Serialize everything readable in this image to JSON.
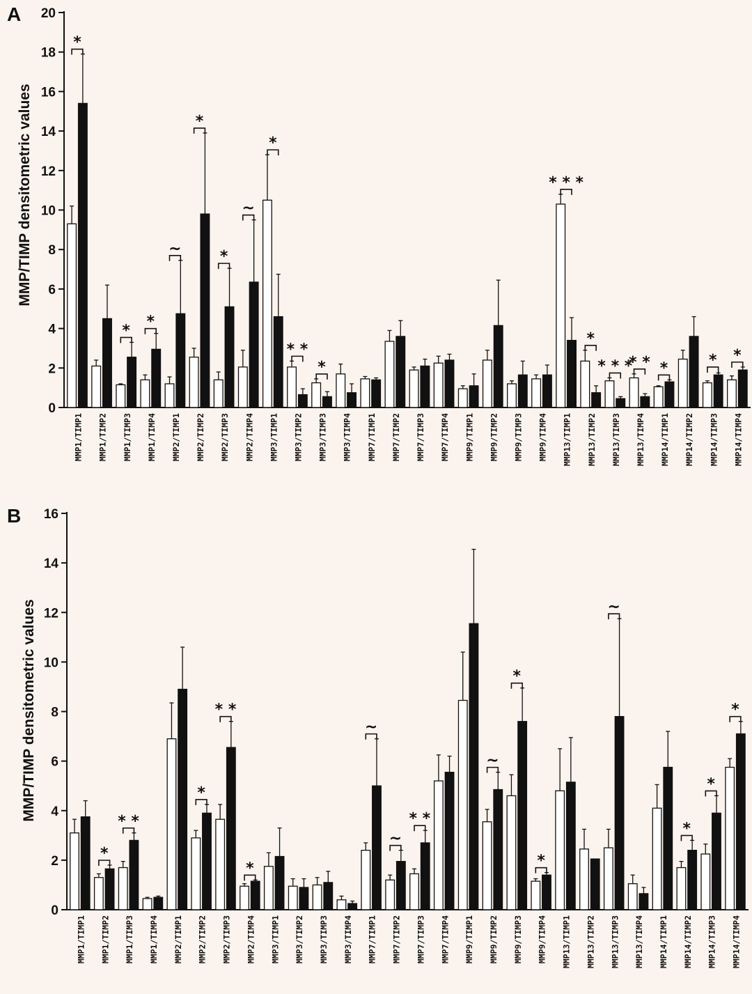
{
  "chart_data": [
    {
      "panel": "A",
      "type": "bar",
      "ylabel": "MMP/TIMP densitometric values",
      "ylim": [
        0,
        20
      ],
      "yticks": [
        "0",
        "2",
        "4",
        "6",
        "8",
        "10",
        "12",
        "14",
        "16",
        "18",
        "20"
      ],
      "categories": [
        "MMP1/TIMP1",
        "MMP1/TIMP2",
        "MMP1/TIMP3",
        "MMP1/TIMP4",
        "MMP2/TIMP1",
        "MMP2/TIMP2",
        "MMP2/TIMP3",
        "MMP2/TIMP4",
        "MMP3/TIMP1",
        "MMP3/TIMP2",
        "MMP3/TIMP3",
        "MMP3/TIMP4",
        "MMP7/TIMP1",
        "MMP7/TIMP2",
        "MMP7/TIMP3",
        "MMP7/TIMP4",
        "MMP9/TIMP1",
        "MMP9/TIMP2",
        "MMP9/TIMP3",
        "MMP9/TIMP4",
        "MMP13/TIMP1",
        "MMP13/TIMP2",
        "MMP13/TIMP3",
        "MMP13/TIMP4",
        "MMP14/TIMP1",
        "MMP14/TIMP2",
        "MMP14/TIMP3",
        "MMP14/TIMP4"
      ],
      "series": [
        {
          "fill": "white",
          "values": [
            9.3,
            2.1,
            1.15,
            1.4,
            1.2,
            2.55,
            1.4,
            2.05,
            10.5,
            2.05,
            1.25,
            1.7,
            1.45,
            3.35,
            1.9,
            2.25,
            0.95,
            2.4,
            1.2,
            1.45,
            10.3,
            2.35,
            1.35,
            1.5,
            1.05,
            2.45,
            1.25,
            1.4
          ],
          "errors": [
            0.9,
            0.3,
            0.05,
            0.25,
            0.35,
            0.45,
            0.4,
            0.85,
            2.3,
            0.3,
            0.2,
            0.5,
            0.12,
            0.55,
            0.15,
            0.35,
            0.15,
            0.5,
            0.15,
            0.2,
            0.5,
            0.55,
            0.15,
            0.2,
            0.05,
            0.45,
            0.1,
            0.2
          ]
        },
        {
          "fill": "black",
          "values": [
            15.4,
            4.5,
            2.55,
            2.95,
            4.75,
            9.8,
            5.1,
            6.35,
            4.6,
            0.65,
            0.55,
            0.75,
            1.4,
            3.6,
            2.1,
            2.4,
            1.1,
            4.15,
            1.65,
            1.65,
            3.4,
            0.75,
            0.45,
            0.55,
            1.3,
            3.6,
            1.65,
            1.9
          ],
          "errors": [
            2.5,
            1.7,
            0.75,
            0.8,
            2.7,
            4.1,
            1.95,
            3.15,
            2.15,
            0.3,
            0.25,
            0.45,
            0.1,
            0.8,
            0.35,
            0.3,
            0.6,
            2.3,
            0.7,
            0.5,
            1.15,
            0.35,
            0.1,
            0.15,
            0.1,
            1.0,
            0.1,
            0.15
          ]
        }
      ],
      "significance": [
        {
          "index": 0,
          "label": "*",
          "top": 17.9
        },
        {
          "index": 2,
          "label": "*",
          "top": 3.3
        },
        {
          "index": 3,
          "label": "*",
          "top": 3.75
        },
        {
          "index": 4,
          "label": "~",
          "top": 7.45
        },
        {
          "index": 5,
          "label": "*",
          "top": 13.9
        },
        {
          "index": 6,
          "label": "*",
          "top": 7.05
        },
        {
          "index": 7,
          "label": "~",
          "top": 9.5
        },
        {
          "index": 8,
          "label": "*",
          "top": 12.8
        },
        {
          "index": 9,
          "label": "* *",
          "top": 2.35
        },
        {
          "index": 10,
          "label": "*",
          "top": 1.45
        },
        {
          "index": 20,
          "label": "* * *",
          "top": 10.8
        },
        {
          "index": 21,
          "label": "*",
          "top": 2.9
        },
        {
          "index": 22,
          "label": "* * *",
          "top": 1.5
        },
        {
          "index": 23,
          "label": "* *",
          "top": 1.7
        },
        {
          "index": 24,
          "label": "*",
          "top": 1.4
        },
        {
          "index": 26,
          "label": "*",
          "top": 1.8
        },
        {
          "index": 27,
          "label": "*",
          "top": 2.05
        }
      ]
    },
    {
      "panel": "B",
      "type": "bar",
      "ylabel": "MMP/TIMP densitometric values",
      "ylim": [
        0,
        16
      ],
      "yticks": [
        "0",
        "2",
        "4",
        "6",
        "8",
        "10",
        "12",
        "14",
        "16"
      ],
      "categories": [
        "MMP1/TIMP1",
        "MMP1/TIMP2",
        "MMP1/TIMP3",
        "MMP1/TIMP4",
        "MMP2/TIMP1",
        "MMP2/TIMP2",
        "MMP2/TIMP3",
        "MMP2/TIMP4",
        "MMP3/TIMP1",
        "MMP3/TIMP2",
        "MMP3/TIMP3",
        "MMP3/TIMP4",
        "MMP7/TIMP1",
        "MMP7/TIMP2",
        "MMP7/TIMP3",
        "MMP7/TIMP4",
        "MMP9/TIMP1",
        "MMP9/TIMP2",
        "MMP9/TIMP3",
        "MMP9/TIMP4",
        "MMP13/TIMP1",
        "MMP13/TIMP2",
        "MMP13/TIMP3",
        "MMP13/TIMP4",
        "MMP14/TIMP1",
        "MMP14/TIMP2",
        "MMP14/TIMP3",
        "MMP14/TIMP4"
      ],
      "series": [
        {
          "fill": "white",
          "values": [
            3.1,
            1.3,
            1.7,
            0.45,
            6.9,
            2.9,
            3.65,
            0.95,
            1.75,
            0.95,
            1.0,
            0.4,
            2.4,
            1.2,
            1.45,
            5.2,
            8.45,
            3.55,
            4.6,
            1.15,
            4.8,
            2.45,
            2.5,
            1.05,
            4.1,
            1.7,
            2.25,
            5.75
          ],
          "errors": [
            0.55,
            0.15,
            0.25,
            0.05,
            1.45,
            0.3,
            0.6,
            0.1,
            0.55,
            0.3,
            0.3,
            0.15,
            0.3,
            0.2,
            0.2,
            1.05,
            1.95,
            0.5,
            0.85,
            0.1,
            1.7,
            0.8,
            0.75,
            0.35,
            0.95,
            0.25,
            0.4,
            0.35
          ]
        },
        {
          "fill": "black",
          "values": [
            3.75,
            1.65,
            2.8,
            0.5,
            8.9,
            3.9,
            6.55,
            1.15,
            2.15,
            0.9,
            1.1,
            0.25,
            5.0,
            1.95,
            2.7,
            5.55,
            11.55,
            4.85,
            7.6,
            1.4,
            5.15,
            2.05,
            7.8,
            0.65,
            5.75,
            2.4,
            3.9,
            7.1
          ],
          "errors": [
            0.65,
            0.15,
            0.3,
            0.05,
            1.7,
            0.35,
            1.05,
            0.05,
            1.15,
            0.35,
            0.45,
            0.1,
            1.9,
            0.45,
            0.5,
            0.65,
            3.0,
            0.7,
            1.35,
            0.1,
            1.8,
            0.0,
            3.95,
            0.25,
            1.45,
            0.4,
            0.7,
            0.5
          ]
        }
      ],
      "significance": [
        {
          "index": 1,
          "label": "*",
          "top": 1.8
        },
        {
          "index": 2,
          "label": "* *",
          "top": 3.1
        },
        {
          "index": 5,
          "label": "*",
          "top": 4.25
        },
        {
          "index": 6,
          "label": "* *",
          "top": 7.6
        },
        {
          "index": 7,
          "label": "*",
          "top": 1.2
        },
        {
          "index": 12,
          "label": "~",
          "top": 6.9
        },
        {
          "index": 13,
          "label": "~",
          "top": 2.4
        },
        {
          "index": 14,
          "label": "* *",
          "top": 3.2
        },
        {
          "index": 17,
          "label": "~",
          "top": 5.55
        },
        {
          "index": 18,
          "label": "*",
          "top": 8.95
        },
        {
          "index": 19,
          "label": "*",
          "top": 1.5
        },
        {
          "index": 22,
          "label": "~",
          "top": 11.75
        },
        {
          "index": 25,
          "label": "*",
          "top": 2.8
        },
        {
          "index": 26,
          "label": "*",
          "top": 4.6
        },
        {
          "index": 27,
          "label": "*",
          "top": 7.6
        }
      ]
    }
  ]
}
